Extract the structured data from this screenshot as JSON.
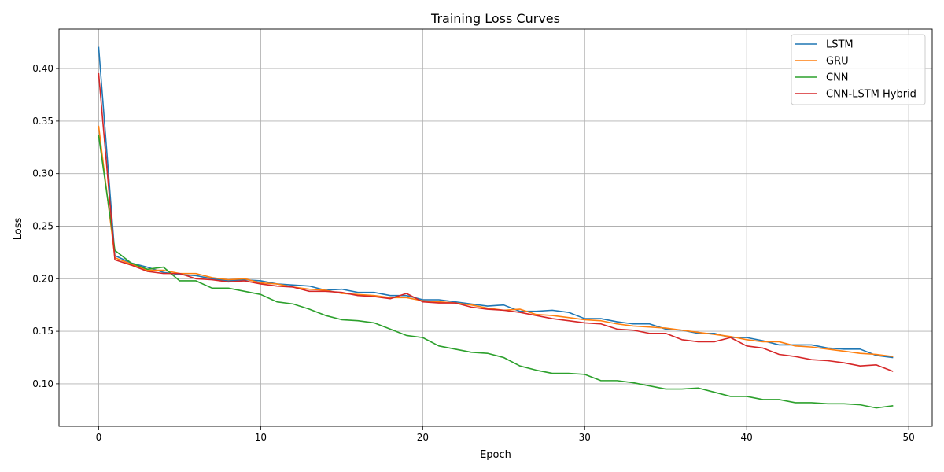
{
  "chart_data": {
    "type": "line",
    "title": "Training Loss Curves",
    "xlabel": "Epoch",
    "ylabel": "Loss",
    "xlim": [
      -2.45,
      51.45
    ],
    "ylim": [
      0.0595,
      0.4375
    ],
    "xticks": [
      0,
      10,
      20,
      30,
      40,
      50
    ],
    "xtick_labels": [
      "0",
      "10",
      "20",
      "30",
      "40",
      "50"
    ],
    "yticks": [
      0.1,
      0.15,
      0.2,
      0.25,
      0.3,
      0.35,
      0.4
    ],
    "ytick_labels": [
      "0.10",
      "0.15",
      "0.20",
      "0.25",
      "0.30",
      "0.35",
      "0.40"
    ],
    "grid": true,
    "legend_position": "top-right",
    "x": [
      0,
      1,
      2,
      3,
      4,
      5,
      6,
      7,
      8,
      9,
      10,
      11,
      12,
      13,
      14,
      15,
      16,
      17,
      18,
      19,
      20,
      21,
      22,
      23,
      24,
      25,
      26,
      27,
      28,
      29,
      30,
      31,
      32,
      33,
      34,
      35,
      36,
      37,
      38,
      39,
      40,
      41,
      42,
      43,
      44,
      45,
      46,
      47,
      48,
      49
    ],
    "series": [
      {
        "name": "LSTM",
        "color": "#1f77b4",
        "values": [
          0.42,
          0.222,
          0.215,
          0.211,
          0.206,
          0.204,
          0.203,
          0.2,
          0.198,
          0.199,
          0.198,
          0.195,
          0.194,
          0.193,
          0.189,
          0.19,
          0.187,
          0.187,
          0.184,
          0.184,
          0.18,
          0.18,
          0.178,
          0.176,
          0.174,
          0.175,
          0.169,
          0.169,
          0.17,
          0.168,
          0.162,
          0.162,
          0.159,
          0.157,
          0.157,
          0.152,
          0.151,
          0.148,
          0.148,
          0.144,
          0.144,
          0.141,
          0.137,
          0.137,
          0.137,
          0.134,
          0.133,
          0.133,
          0.127,
          0.125
        ]
      },
      {
        "name": "GRU",
        "color": "#ff7f0e",
        "values": [
          0.345,
          0.22,
          0.214,
          0.208,
          0.208,
          0.205,
          0.205,
          0.201,
          0.199,
          0.2,
          0.196,
          0.195,
          0.192,
          0.19,
          0.189,
          0.186,
          0.185,
          0.184,
          0.182,
          0.182,
          0.179,
          0.178,
          0.177,
          0.175,
          0.172,
          0.17,
          0.171,
          0.166,
          0.165,
          0.163,
          0.161,
          0.16,
          0.157,
          0.155,
          0.154,
          0.153,
          0.151,
          0.149,
          0.147,
          0.145,
          0.142,
          0.14,
          0.14,
          0.136,
          0.135,
          0.133,
          0.131,
          0.129,
          0.128,
          0.126
        ]
      },
      {
        "name": "CNN",
        "color": "#2ca02c",
        "values": [
          0.336,
          0.227,
          0.215,
          0.209,
          0.211,
          0.198,
          0.198,
          0.191,
          0.191,
          0.188,
          0.185,
          0.178,
          0.176,
          0.171,
          0.165,
          0.161,
          0.16,
          0.158,
          0.152,
          0.146,
          0.144,
          0.136,
          0.133,
          0.13,
          0.129,
          0.125,
          0.117,
          0.113,
          0.11,
          0.11,
          0.109,
          0.103,
          0.103,
          0.101,
          0.098,
          0.095,
          0.095,
          0.096,
          0.092,
          0.088,
          0.088,
          0.085,
          0.085,
          0.082,
          0.082,
          0.081,
          0.081,
          0.08,
          0.077,
          0.079
        ]
      },
      {
        "name": "CNN-LSTM Hybrid",
        "color": "#d62728",
        "values": [
          0.395,
          0.218,
          0.213,
          0.207,
          0.205,
          0.205,
          0.2,
          0.199,
          0.197,
          0.198,
          0.195,
          0.193,
          0.192,
          0.188,
          0.188,
          0.187,
          0.184,
          0.183,
          0.181,
          0.186,
          0.178,
          0.177,
          0.177,
          0.173,
          0.171,
          0.17,
          0.168,
          0.165,
          0.162,
          0.16,
          0.158,
          0.157,
          0.152,
          0.151,
          0.148,
          0.148,
          0.142,
          0.14,
          0.14,
          0.144,
          0.136,
          0.134,
          0.128,
          0.126,
          0.123,
          0.122,
          0.12,
          0.117,
          0.118,
          0.112
        ]
      }
    ]
  }
}
